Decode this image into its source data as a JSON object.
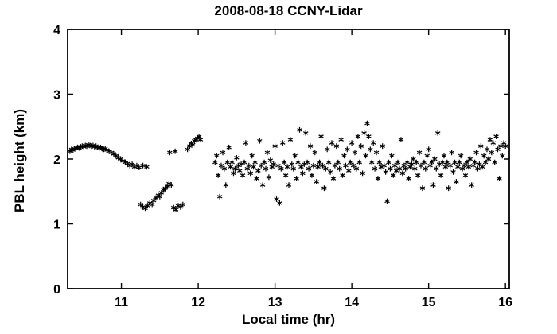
{
  "chart_data": {
    "type": "scatter",
    "title": "2008-08-18 CCNY-Lidar",
    "xlabel": "Local time (hr)",
    "ylabel": "PBL height (km)",
    "xlim": [
      10.3,
      16.05
    ],
    "ylim": [
      0,
      4
    ],
    "xticks": [
      11,
      12,
      13,
      14,
      15,
      16
    ],
    "yticks": [
      0,
      1,
      2,
      3,
      4
    ],
    "grid": false,
    "legend": "none",
    "marker": "asterisk",
    "marker_color": "#000000",
    "series": [
      {
        "name": "PBL height",
        "points": [
          [
            10.33,
            2.12
          ],
          [
            10.35,
            2.15
          ],
          [
            10.37,
            2.14
          ],
          [
            10.39,
            2.16
          ],
          [
            10.41,
            2.17
          ],
          [
            10.43,
            2.18
          ],
          [
            10.45,
            2.17
          ],
          [
            10.47,
            2.19
          ],
          [
            10.49,
            2.2
          ],
          [
            10.51,
            2.19
          ],
          [
            10.53,
            2.21
          ],
          [
            10.55,
            2.2
          ],
          [
            10.57,
            2.22
          ],
          [
            10.59,
            2.21
          ],
          [
            10.61,
            2.2
          ],
          [
            10.63,
            2.21
          ],
          [
            10.65,
            2.19
          ],
          [
            10.67,
            2.2
          ],
          [
            10.69,
            2.18
          ],
          [
            10.71,
            2.17
          ],
          [
            10.73,
            2.18
          ],
          [
            10.75,
            2.16
          ],
          [
            10.77,
            2.15
          ],
          [
            10.79,
            2.16
          ],
          [
            10.81,
            2.14
          ],
          [
            10.84,
            2.12
          ],
          [
            10.87,
            2.1
          ],
          [
            10.9,
            2.08
          ],
          [
            10.93,
            2.05
          ],
          [
            10.96,
            2.02
          ],
          [
            10.99,
            2.0
          ],
          [
            11.02,
            1.97
          ],
          [
            11.05,
            1.95
          ],
          [
            11.08,
            1.93
          ],
          [
            11.11,
            1.9
          ],
          [
            11.14,
            1.92
          ],
          [
            11.17,
            1.88
          ],
          [
            11.2,
            1.9
          ],
          [
            11.23,
            1.87
          ],
          [
            11.28,
            1.9
          ],
          [
            11.33,
            1.88
          ],
          [
            11.25,
            1.3
          ],
          [
            11.28,
            1.26
          ],
          [
            11.31,
            1.24
          ],
          [
            11.34,
            1.28
          ],
          [
            11.37,
            1.32
          ],
          [
            11.4,
            1.3
          ],
          [
            11.42,
            1.36
          ],
          [
            11.45,
            1.4
          ],
          [
            11.48,
            1.44
          ],
          [
            11.5,
            1.42
          ],
          [
            11.52,
            1.48
          ],
          [
            11.55,
            1.52
          ],
          [
            11.57,
            1.55
          ],
          [
            11.6,
            1.58
          ],
          [
            11.62,
            1.62
          ],
          [
            11.65,
            1.6
          ],
          [
            11.68,
            1.25
          ],
          [
            11.71,
            1.22
          ],
          [
            11.74,
            1.28
          ],
          [
            11.77,
            1.26
          ],
          [
            11.8,
            1.3
          ],
          [
            11.63,
            2.1
          ],
          [
            11.7,
            2.12
          ],
          [
            11.86,
            2.15
          ],
          [
            11.89,
            2.2
          ],
          [
            11.91,
            2.24
          ],
          [
            11.93,
            2.22
          ],
          [
            11.95,
            2.28
          ],
          [
            11.97,
            2.3
          ],
          [
            11.99,
            2.32
          ],
          [
            12.01,
            2.35
          ],
          [
            12.03,
            2.3
          ],
          [
            12.22,
            1.95
          ],
          [
            12.24,
            2.05
          ],
          [
            12.26,
            1.75
          ],
          [
            12.28,
            1.42
          ],
          [
            12.3,
            1.9
          ],
          [
            12.32,
            2.1
          ],
          [
            12.34,
            1.85
          ],
          [
            12.36,
            1.6
          ],
          [
            12.38,
            1.95
          ],
          [
            12.4,
            2.18
          ],
          [
            12.42,
            1.88
          ],
          [
            12.44,
            1.95
          ],
          [
            12.46,
            1.78
          ],
          [
            12.48,
            1.85
          ],
          [
            12.5,
            2.02
          ],
          [
            12.52,
            1.9
          ],
          [
            12.54,
            1.82
          ],
          [
            12.56,
            1.92
          ],
          [
            12.58,
            1.75
          ],
          [
            12.6,
            1.95
          ],
          [
            12.62,
            2.25
          ],
          [
            12.64,
            1.85
          ],
          [
            12.66,
            1.9
          ],
          [
            12.68,
            1.78
          ],
          [
            12.7,
            2.05
          ],
          [
            12.72,
            1.88
          ],
          [
            12.74,
            1.95
          ],
          [
            12.76,
            1.7
          ],
          [
            12.78,
            1.82
          ],
          [
            12.8,
            2.28
          ],
          [
            12.82,
            1.9
          ],
          [
            12.84,
            1.6
          ],
          [
            12.86,
            1.95
          ],
          [
            12.88,
            1.85
          ],
          [
            12.9,
            2.1
          ],
          [
            12.92,
            1.72
          ],
          [
            12.94,
            1.98
          ],
          [
            12.96,
            1.88
          ],
          [
            12.98,
            1.92
          ],
          [
            13.0,
            2.2
          ],
          [
            13.02,
            1.38
          ],
          [
            13.04,
            1.9
          ],
          [
            13.06,
            1.32
          ],
          [
            13.08,
            1.85
          ],
          [
            13.1,
            2.25
          ],
          [
            13.12,
            1.95
          ],
          [
            13.14,
            1.75
          ],
          [
            13.16,
            1.88
          ],
          [
            13.18,
            1.6
          ],
          [
            13.2,
            2.3
          ],
          [
            13.22,
            1.92
          ],
          [
            13.24,
            1.85
          ],
          [
            13.26,
            2.05
          ],
          [
            13.28,
            1.7
          ],
          [
            13.3,
            1.95
          ],
          [
            13.32,
            2.45
          ],
          [
            13.34,
            1.88
          ],
          [
            13.36,
            1.78
          ],
          [
            13.38,
            1.92
          ],
          [
            13.4,
            2.4
          ],
          [
            13.42,
            1.95
          ],
          [
            13.44,
            1.85
          ],
          [
            13.46,
            2.2
          ],
          [
            13.48,
            1.75
          ],
          [
            13.5,
            1.9
          ],
          [
            13.52,
            2.1
          ],
          [
            13.54,
            1.65
          ],
          [
            13.56,
            1.88
          ],
          [
            13.58,
            1.95
          ],
          [
            13.6,
            2.35
          ],
          [
            13.62,
            1.9
          ],
          [
            13.64,
            1.55
          ],
          [
            13.66,
            1.85
          ],
          [
            13.68,
            2.15
          ],
          [
            13.7,
            1.95
          ],
          [
            13.72,
            1.8
          ],
          [
            13.74,
            2.25
          ],
          [
            13.76,
            1.7
          ],
          [
            13.78,
            1.9
          ],
          [
            13.8,
            2.2
          ],
          [
            13.82,
            1.95
          ],
          [
            13.84,
            1.85
          ],
          [
            13.86,
            2.3
          ],
          [
            13.88,
            1.75
          ],
          [
            13.9,
            2.05
          ],
          [
            13.92,
            1.9
          ],
          [
            13.94,
            2.15
          ],
          [
            13.96,
            1.82
          ],
          [
            13.98,
            1.95
          ],
          [
            14.0,
            2.25
          ],
          [
            14.02,
            1.9
          ],
          [
            14.04,
            2.1
          ],
          [
            14.06,
            1.85
          ],
          [
            14.08,
            2.35
          ],
          [
            14.1,
            1.95
          ],
          [
            14.12,
            2.2
          ],
          [
            14.14,
            1.78
          ],
          [
            14.16,
            2.4
          ],
          [
            14.18,
            2.05
          ],
          [
            14.2,
            2.55
          ],
          [
            14.22,
            2.35
          ],
          [
            14.24,
            2.15
          ],
          [
            14.26,
            1.95
          ],
          [
            14.28,
            2.25
          ],
          [
            14.3,
            1.85
          ],
          [
            14.32,
            2.1
          ],
          [
            14.34,
            1.7
          ],
          [
            14.36,
            1.95
          ],
          [
            14.38,
            1.88
          ],
          [
            14.4,
            2.2
          ],
          [
            14.42,
            1.9
          ],
          [
            14.44,
            1.8
          ],
          [
            14.46,
            1.35
          ],
          [
            14.48,
            1.95
          ],
          [
            14.5,
            1.85
          ],
          [
            14.52,
            2.05
          ],
          [
            14.54,
            1.75
          ],
          [
            14.56,
            1.9
          ],
          [
            14.58,
            1.82
          ],
          [
            14.6,
            1.95
          ],
          [
            14.62,
            1.85
          ],
          [
            14.64,
            2.3
          ],
          [
            14.66,
            1.78
          ],
          [
            14.68,
            1.9
          ],
          [
            14.7,
            1.85
          ],
          [
            14.72,
            1.95
          ],
          [
            14.74,
            1.7
          ],
          [
            14.76,
            1.88
          ],
          [
            14.78,
            1.92
          ],
          [
            14.8,
            2.0
          ],
          [
            14.82,
            1.85
          ],
          [
            14.84,
            1.95
          ],
          [
            14.86,
            1.75
          ],
          [
            14.88,
            2.1
          ],
          [
            14.9,
            1.9
          ],
          [
            14.92,
            1.55
          ],
          [
            14.94,
            1.95
          ],
          [
            14.96,
            1.85
          ],
          [
            14.98,
            2.05
          ],
          [
            15.0,
            2.15
          ],
          [
            15.02,
            1.9
          ],
          [
            15.04,
            1.95
          ],
          [
            15.06,
            1.6
          ],
          [
            15.08,
            2.0
          ],
          [
            15.1,
            1.85
          ],
          [
            15.12,
            2.4
          ],
          [
            15.14,
            1.92
          ],
          [
            15.16,
            1.75
          ],
          [
            15.18,
            1.95
          ],
          [
            15.2,
            2.05
          ],
          [
            15.22,
            1.88
          ],
          [
            15.24,
            1.95
          ],
          [
            15.26,
            1.55
          ],
          [
            15.28,
            1.9
          ],
          [
            15.3,
            2.1
          ],
          [
            15.32,
            1.8
          ],
          [
            15.34,
            1.95
          ],
          [
            15.36,
            1.65
          ],
          [
            15.38,
            1.88
          ],
          [
            15.4,
            1.95
          ],
          [
            15.42,
            2.05
          ],
          [
            15.44,
            1.85
          ],
          [
            15.46,
            1.9
          ],
          [
            15.48,
            1.75
          ],
          [
            15.5,
            1.95
          ],
          [
            15.52,
            1.88
          ],
          [
            15.54,
            2.0
          ],
          [
            15.56,
            1.6
          ],
          [
            15.58,
            1.9
          ],
          [
            15.6,
            1.95
          ],
          [
            15.62,
            2.1
          ],
          [
            15.64,
            1.85
          ],
          [
            15.66,
            1.92
          ],
          [
            15.68,
            2.2
          ],
          [
            15.7,
            1.88
          ],
          [
            15.72,
            2.05
          ],
          [
            15.74,
            1.95
          ],
          [
            15.76,
            2.15
          ],
          [
            15.78,
            2.0
          ],
          [
            15.8,
            2.3
          ],
          [
            15.82,
            2.1
          ],
          [
            15.84,
            2.25
          ],
          [
            15.86,
            1.95
          ],
          [
            15.88,
            2.35
          ],
          [
            15.9,
            2.15
          ],
          [
            15.92,
            1.7
          ],
          [
            15.94,
            2.2
          ],
          [
            15.96,
            2.05
          ],
          [
            15.98,
            2.25
          ],
          [
            16.0,
            2.2
          ]
        ]
      }
    ]
  }
}
